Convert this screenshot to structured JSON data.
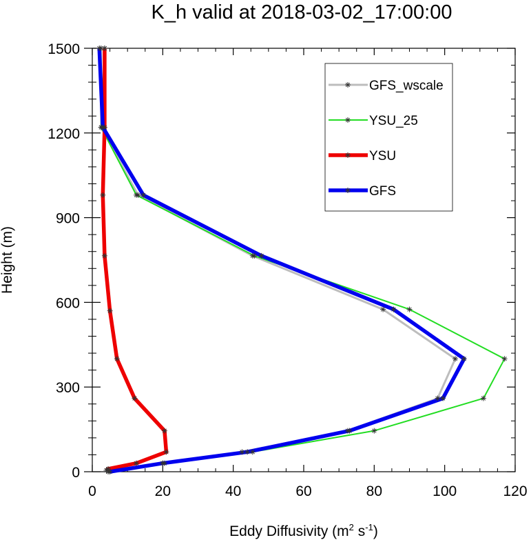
{
  "chart_data": {
    "type": "line",
    "title": "K_h valid at 2018-03-02_17:00:00",
    "xlabel": "Eddy Diffusivity (m",
    "xlabel_sup1": "2",
    "xlabel_mid": " s",
    "xlabel_sup2": "-1",
    "xlabel_end": ")",
    "ylabel": "Height (m)",
    "xlim": [
      0,
      120
    ],
    "ylim": [
      0,
      1500
    ],
    "x_ticks": [
      0,
      20,
      40,
      60,
      80,
      100,
      120
    ],
    "y_ticks": [
      0,
      300,
      600,
      900,
      1200,
      1500
    ],
    "x_tick_labels": [
      "0",
      "20",
      "40",
      "60",
      "80",
      "100",
      "120"
    ],
    "y_tick_labels": [
      "0",
      "300",
      "600",
      "900",
      "1200",
      "1500"
    ],
    "legend_position": "top-right",
    "grid": false,
    "series": [
      {
        "name": "GFS_wscale",
        "color": "#bdbdbd",
        "width": "medium",
        "points": [
          [
            4.5,
            0
          ],
          [
            20,
            30
          ],
          [
            42.5,
            70
          ],
          [
            72.5,
            145
          ],
          [
            98,
            260
          ],
          [
            103,
            400
          ],
          [
            82.5,
            575
          ],
          [
            45.5,
            765
          ],
          [
            13,
            980
          ],
          [
            2.5,
            1220
          ],
          [
            2.5,
            1500
          ]
        ]
      },
      {
        "name": "YSU_25",
        "color": "#22dd22",
        "width": "thin",
        "points": [
          [
            4.5,
            0
          ],
          [
            20.5,
            30
          ],
          [
            45.5,
            70
          ],
          [
            80,
            145
          ],
          [
            111,
            260
          ],
          [
            117,
            400
          ],
          [
            90,
            575
          ],
          [
            46,
            765
          ],
          [
            12.5,
            980
          ],
          [
            2.5,
            1220
          ],
          [
            3.5,
            1500
          ]
        ]
      },
      {
        "name": "YSU",
        "color": "#ee0000",
        "width": "thick",
        "points": [
          [
            4,
            5
          ],
          [
            4.5,
            10
          ],
          [
            12.5,
            30
          ],
          [
            21,
            70
          ],
          [
            20.5,
            145
          ],
          [
            12,
            260
          ],
          [
            7,
            400
          ],
          [
            5,
            570
          ],
          [
            3.5,
            765
          ],
          [
            3,
            980
          ],
          [
            3.5,
            1220
          ],
          [
            3.5,
            1500
          ]
        ]
      },
      {
        "name": "GFS",
        "color": "#0000ee",
        "width": "thick",
        "points": [
          [
            5,
            0
          ],
          [
            20,
            30
          ],
          [
            44,
            70
          ],
          [
            73,
            145
          ],
          [
            99.5,
            260
          ],
          [
            105.5,
            400
          ],
          [
            85.5,
            575
          ],
          [
            48,
            765
          ],
          [
            14.5,
            980
          ],
          [
            3,
            1220
          ],
          [
            2,
            1500
          ]
        ]
      }
    ]
  }
}
